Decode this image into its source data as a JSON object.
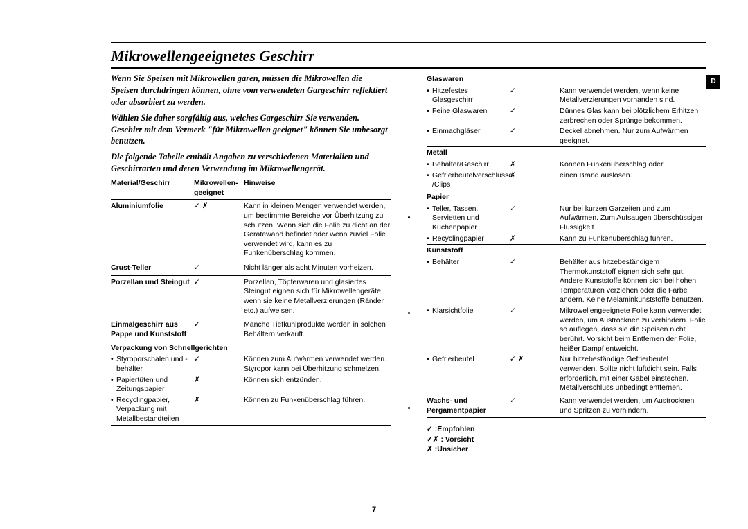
{
  "title": "Mikrowellengeeignetes Geschirr",
  "tab_letter": "D",
  "page_number": "7",
  "intro": [
    "Wenn Sie Speisen mit Mikrowellen garen, müssen die Mikrowellen die Speisen durchdringen können, ohne vom verwendeten Gargeschirr reflektiert oder absorbiert zu werden.",
    "Wählen Sie daher sorgfältig aus, welches Gargeschirr Sie verwenden. Geschirr mit dem Vermerk \"für Mikrowellen geeignet\" können Sie unbesorgt benutzen.",
    "Die folgende Tabelle enthält Angaben zu verschiedenen Materialien und Geschirrarten und deren Verwendung im Mikrowellengerät."
  ],
  "headers": {
    "material": "Material/Geschirr",
    "microwave": "Mikrowellen-geeignet",
    "hints": "Hinweise"
  },
  "left_rows": [
    {
      "material": "Aluminiumfolie",
      "mw": "✓ ✗",
      "hint": "Kann in kleinen Mengen verwendet werden, um bestimmte Bereiche vor Überhitzung zu schützen. Wenn sich die Folie zu dicht an der Gerätewand befindet oder wenn zuviel Folie verwendet wird, kann es zu Funkenüberschlag kommen."
    },
    {
      "material": "Crust-Teller",
      "mw": "✓",
      "hint": "Nicht länger als acht Minuten vorheizen."
    },
    {
      "material": "Porzellan und Steingut",
      "mw": "✓",
      "hint": "Porzellan, Töpferwaren und glasiertes Steingut eignen sich für Mikrowellengeräte, wenn sie keine Metallverzierungen (Ränder etc.) aufweisen."
    },
    {
      "material": "Einmalgeschirr aus Pappe und Kunststoff",
      "mw": "✓",
      "hint": "Manche Tiefkühlprodukte werden in solchen Behältern verkauft."
    }
  ],
  "schnell_header": "Verpackung von Schnellgerichten",
  "schnell_items": [
    {
      "label": "Styroporschalen und -behälter",
      "mw": "✓",
      "txt": "Können zum Aufwärmen verwendet werden. Styropor kann bei Überhitzung schmelzen."
    },
    {
      "label": "Papiertüten und Zeitungspapier",
      "mw": "✗",
      "txt": "Können sich entzünden."
    },
    {
      "label": "Recyclingpapier, Verpackung mit Metallbestandteilen",
      "mw": "✗",
      "txt": "Können zu Funkenüberschlag führen."
    }
  ],
  "right_sections": [
    {
      "header": "Glaswaren",
      "items": [
        {
          "label": "Hitzefestes Glasgeschirr",
          "mw": "✓",
          "txt": "Kann verwendet werden, wenn keine Metallverzierungen vorhanden sind."
        },
        {
          "label": "Feine Glaswaren",
          "mw": "✓",
          "txt": "Dünnes Glas kann bei plötzlichem Erhitzen zerbrechen oder Sprünge bekommen."
        },
        {
          "label": "Einmachgläser",
          "mw": "✓",
          "txt": "Deckel abnehmen. Nur zum Aufwärmen geeignet."
        }
      ]
    },
    {
      "header": "Metall",
      "items": [
        {
          "label": "Behälter/Geschirr",
          "mw": "✗",
          "txt": "Können Funkenüberschlag oder"
        },
        {
          "label": "Gefrierbeutelverschlüsse /Clips",
          "mw": "✗",
          "txt": "einen Brand auslösen."
        }
      ]
    },
    {
      "header": "Papier",
      "items": [
        {
          "label": "Teller, Tassen, Servietten und Küchenpapier",
          "mw": "✓",
          "txt": "Nur bei kurzen Garzeiten und zum Aufwärmen. Zum Aufsaugen überschüssiger Flüssigkeit."
        },
        {
          "label": "Recyclingpapier",
          "mw": "✗",
          "txt": "Kann zu Funkenüberschlag führen."
        }
      ]
    },
    {
      "header": "Kunststoff",
      "items": [
        {
          "label": "Behälter",
          "mw": "✓",
          "txt": "Behälter aus hitzebeständigem Thermokunststoff eignen sich sehr gut. Andere Kunststoffe können sich bei hohen Temperaturen verziehen oder die Farbe ändern. Keine Melaminkunststoffe benutzen."
        },
        {
          "label": "Klarsichtfolie",
          "mw": "✓",
          "txt": "Mikrowellengeeignete Folie kann verwendet werden, um Austrocknen zu verhindern. Folie so auflegen, dass sie die Speisen nicht berührt. Vorsicht beim Entfernen der Folie, heißer Dampf entweicht."
        },
        {
          "label": "Gefrierbeutel",
          "mw": "✓ ✗",
          "txt": "Nur hitzebeständige Gefrierbeutel verwenden. Sollte nicht luftdicht sein. Falls erforderlich, mit einer Gabel einstechen. Metallverschluss unbedingt entfernen."
        }
      ]
    }
  ],
  "wachs_row": {
    "material": "Wachs- und Pergamentpapier",
    "mw": "✓",
    "hint": "Kann verwendet werden, um Austrocknen und Spritzen zu verhindern."
  },
  "legend": {
    "yes": "✓  :Empfohlen",
    "caution": "✓✗ : Vorsicht",
    "no": "✗  :Unsicher"
  }
}
